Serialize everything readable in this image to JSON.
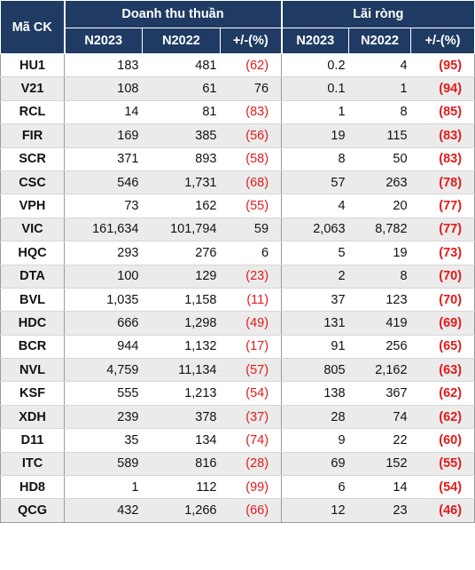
{
  "header": {
    "ticker": "Mã CK",
    "revenue_group": "Doanh thu thuần",
    "profit_group": "Lãi ròng",
    "sub": [
      "N2023",
      "N2022",
      "+/-(%)",
      "N2023",
      "N2022",
      "+/-(%)"
    ]
  },
  "colors": {
    "header_bg": "#1f3b63",
    "negative": "#e21b1b",
    "stripe": "#ebebeb"
  },
  "rows": [
    {
      "ticker": "HU1",
      "rev2023": "183",
      "rev2022": "481",
      "rev_chg": "(62)",
      "np2023": "0.2",
      "np2022": "4",
      "np_chg": "(95)"
    },
    {
      "ticker": "V21",
      "rev2023": "108",
      "rev2022": "61",
      "rev_chg": "76",
      "np2023": "0.1",
      "np2022": "1",
      "np_chg": "(94)"
    },
    {
      "ticker": "RCL",
      "rev2023": "14",
      "rev2022": "81",
      "rev_chg": "(83)",
      "np2023": "1",
      "np2022": "8",
      "np_chg": "(85)"
    },
    {
      "ticker": "FIR",
      "rev2023": "169",
      "rev2022": "385",
      "rev_chg": "(56)",
      "np2023": "19",
      "np2022": "115",
      "np_chg": "(83)"
    },
    {
      "ticker": "SCR",
      "rev2023": "371",
      "rev2022": "893",
      "rev_chg": "(58)",
      "np2023": "8",
      "np2022": "50",
      "np_chg": "(83)"
    },
    {
      "ticker": "CSC",
      "rev2023": "546",
      "rev2022": "1,731",
      "rev_chg": "(68)",
      "np2023": "57",
      "np2022": "263",
      "np_chg": "(78)"
    },
    {
      "ticker": "VPH",
      "rev2023": "73",
      "rev2022": "162",
      "rev_chg": "(55)",
      "np2023": "4",
      "np2022": "20",
      "np_chg": "(77)"
    },
    {
      "ticker": "VIC",
      "rev2023": "161,634",
      "rev2022": "101,794",
      "rev_chg": "59",
      "np2023": "2,063",
      "np2022": "8,782",
      "np_chg": "(77)"
    },
    {
      "ticker": "HQC",
      "rev2023": "293",
      "rev2022": "276",
      "rev_chg": "6",
      "np2023": "5",
      "np2022": "19",
      "np_chg": "(73)"
    },
    {
      "ticker": "DTA",
      "rev2023": "100",
      "rev2022": "129",
      "rev_chg": "(23)",
      "np2023": "2",
      "np2022": "8",
      "np_chg": "(70)"
    },
    {
      "ticker": "BVL",
      "rev2023": "1,035",
      "rev2022": "1,158",
      "rev_chg": "(11)",
      "np2023": "37",
      "np2022": "123",
      "np_chg": "(70)"
    },
    {
      "ticker": "HDC",
      "rev2023": "666",
      "rev2022": "1,298",
      "rev_chg": "(49)",
      "np2023": "131",
      "np2022": "419",
      "np_chg": "(69)"
    },
    {
      "ticker": "BCR",
      "rev2023": "944",
      "rev2022": "1,132",
      "rev_chg": "(17)",
      "np2023": "91",
      "np2022": "256",
      "np_chg": "(65)"
    },
    {
      "ticker": "NVL",
      "rev2023": "4,759",
      "rev2022": "11,134",
      "rev_chg": "(57)",
      "np2023": "805",
      "np2022": "2,162",
      "np_chg": "(63)"
    },
    {
      "ticker": "KSF",
      "rev2023": "555",
      "rev2022": "1,213",
      "rev_chg": "(54)",
      "np2023": "138",
      "np2022": "367",
      "np_chg": "(62)"
    },
    {
      "ticker": "XDH",
      "rev2023": "239",
      "rev2022": "378",
      "rev_chg": "(37)",
      "np2023": "28",
      "np2022": "74",
      "np_chg": "(62)"
    },
    {
      "ticker": "D11",
      "rev2023": "35",
      "rev2022": "134",
      "rev_chg": "(74)",
      "np2023": "9",
      "np2022": "22",
      "np_chg": "(60)"
    },
    {
      "ticker": "ITC",
      "rev2023": "589",
      "rev2022": "816",
      "rev_chg": "(28)",
      "np2023": "69",
      "np2022": "152",
      "np_chg": "(55)"
    },
    {
      "ticker": "HD8",
      "rev2023": "1",
      "rev2022": "112",
      "rev_chg": "(99)",
      "np2023": "6",
      "np2022": "14",
      "np_chg": "(54)"
    },
    {
      "ticker": "QCG",
      "rev2023": "432",
      "rev2022": "1,266",
      "rev_chg": "(66)",
      "np2023": "12",
      "np2022": "23",
      "np_chg": "(46)"
    }
  ]
}
